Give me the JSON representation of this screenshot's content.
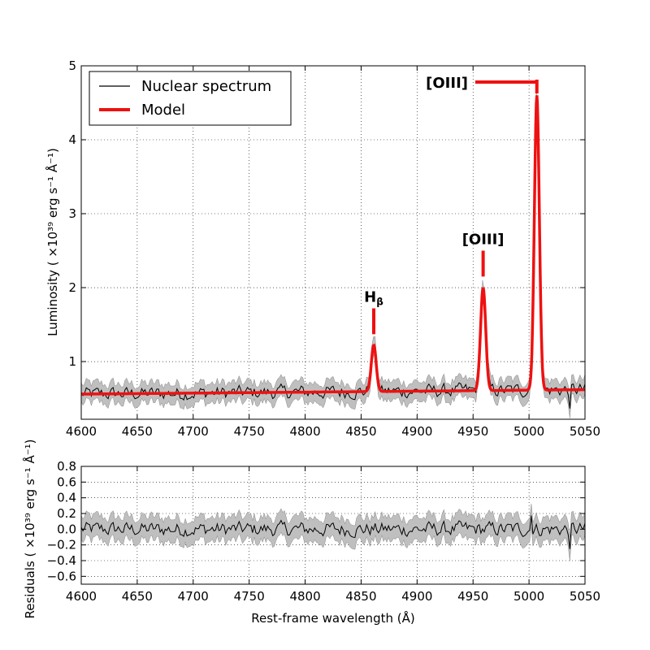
{
  "chart_data": [
    {
      "id": "main",
      "type": "line",
      "xlabel": "Rest-frame wavelength (Å)",
      "ylabel": "Luminosity ( ×10³⁹ erg s⁻¹ Å⁻¹)",
      "xlim": [
        4600,
        5050
      ],
      "ylim": [
        0.22,
        5.0
      ],
      "xticks": [
        "4600",
        "4650",
        "4700",
        "4750",
        "4800",
        "4850",
        "4900",
        "4950",
        "5000",
        "5050"
      ],
      "yticks": [
        "1",
        "2",
        "3",
        "4",
        "5"
      ],
      "ytick_values": [
        1,
        2,
        3,
        4,
        5
      ],
      "grid": true,
      "legend": {
        "position": "top-left",
        "entries": [
          {
            "name": "Nuclear spectrum",
            "color": "#000000"
          },
          {
            "name": "Model",
            "color": "#ee1111"
          }
        ]
      },
      "continuum": {
        "start": 0.56,
        "end": 0.62
      },
      "emission_lines": [
        {
          "name": "Hβ",
          "label_main": "H",
          "label_sub": "β",
          "center": 4861.3,
          "peak": 1.22,
          "sigma": 2.2
        },
        {
          "name": "[OIII]",
          "label_main": "[OIII]",
          "label_sub": "",
          "center": 4959.0,
          "peak": 2.0,
          "sigma": 2.3
        },
        {
          "name": "[OIII]",
          "label_main": "[OIII]",
          "label_sub": "",
          "center": 5007.0,
          "peak": 4.6,
          "sigma": 2.2
        }
      ],
      "error_band_halfwidth": 0.13,
      "colors": {
        "data": "#000000",
        "model": "#ee1111",
        "band": "#bfbfbf"
      }
    },
    {
      "id": "residuals",
      "type": "line",
      "xlabel": "Rest-frame wavelength (Å)",
      "ylabel": "Residuals ( ×10³⁹ erg s⁻¹ Å⁻¹)",
      "xlim": [
        4600,
        5050
      ],
      "ylim": [
        -0.7,
        0.8
      ],
      "xticks": [
        "4600",
        "4650",
        "4700",
        "4750",
        "4800",
        "4850",
        "4900",
        "4950",
        "5000",
        "5050"
      ],
      "yticks": [
        "0.8",
        "0.6",
        "0.4",
        "0.2",
        "0.0",
        "−0.2",
        "−0.4",
        "−0.6"
      ],
      "ytick_values": [
        0.8,
        0.6,
        0.4,
        0.2,
        0.0,
        -0.2,
        -0.4,
        -0.6
      ],
      "grid": true,
      "error_band_halfwidth": 0.15,
      "colors": {
        "data": "#000000",
        "band": "#bfbfbf"
      }
    }
  ]
}
